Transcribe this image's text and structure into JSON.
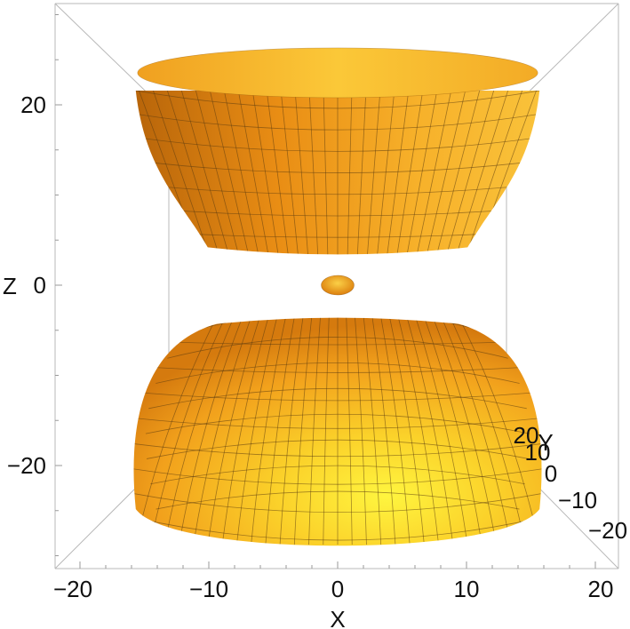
{
  "chart_data": {
    "type": "surface3d",
    "title": "",
    "xlabel": "X",
    "ylabel": "Y",
    "zlabel": "Z",
    "x_ticks": [
      "−20",
      "−10",
      "0",
      "10",
      "20"
    ],
    "y_ticks": [
      "20",
      "10",
      "0",
      "−10",
      "−20"
    ],
    "z_ticks": [
      "20",
      "0",
      "−20"
    ],
    "xlim": [
      -22,
      22
    ],
    "ylim": [
      -22,
      22
    ],
    "zlim": [
      -30,
      30
    ],
    "grid": false,
    "surface_color": "#f2a21a",
    "highlight_color": "#fff24a",
    "mesh_color": "#5a3a10",
    "sheets": [
      {
        "part": "upper",
        "z_range": [
          4,
          27
        ],
        "radius_at_z_range": [
          11,
          16
        ]
      },
      {
        "part": "center",
        "z_range": [
          -1,
          1
        ],
        "radius_at_z_range": [
          1.3,
          1.3
        ]
      },
      {
        "part": "lower",
        "z_range": [
          -27,
          -4
        ],
        "radius_at_z_range": [
          16,
          11
        ]
      }
    ]
  }
}
